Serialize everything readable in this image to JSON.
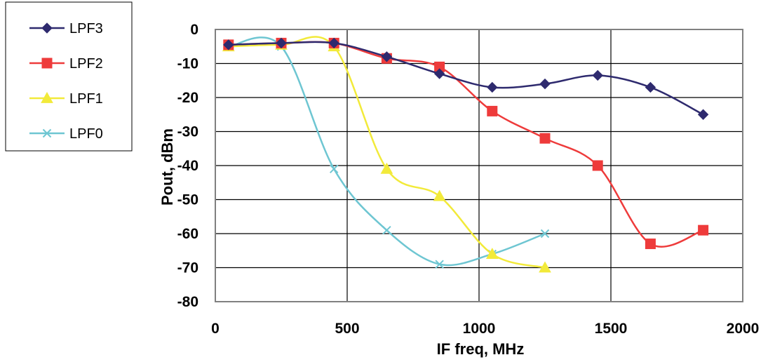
{
  "chart_data": {
    "type": "line",
    "title": "",
    "xlabel": "IF freq, MHz",
    "ylabel": "Pout, dBm",
    "xlim": [
      0,
      2000
    ],
    "ylim": [
      -80,
      0
    ],
    "x_ticks": [
      "0",
      "500",
      "1000",
      "1500",
      "2000"
    ],
    "y_ticks": [
      "0",
      "-10",
      "-20",
      "-30",
      "-40",
      "-50",
      "-60",
      "-70",
      "-80"
    ],
    "grid": true,
    "smooth": true,
    "legend_position": "left",
    "series": [
      {
        "name": "LPF3",
        "color": "#2E2A6E",
        "marker": "diamond",
        "x": [
          50,
          250,
          450,
          650,
          850,
          1050,
          1250,
          1450,
          1650,
          1850
        ],
        "y": [
          -4.5,
          -4,
          -4,
          -8,
          -13,
          -17,
          -16,
          -13.5,
          -17,
          -25
        ]
      },
      {
        "name": "LPF2",
        "color": "#EE3B3B",
        "marker": "square",
        "x": [
          50,
          250,
          450,
          650,
          850,
          1050,
          1250,
          1450,
          1650,
          1850
        ],
        "y": [
          -4.5,
          -4,
          -4,
          -8.5,
          -11,
          -24,
          -32,
          -40,
          -63,
          -59
        ]
      },
      {
        "name": "LPF1",
        "color": "#F2EA3A",
        "marker": "triangle",
        "x": [
          50,
          250,
          450,
          650,
          850,
          1050,
          1250
        ],
        "y": [
          -5,
          -4.5,
          -5,
          -41,
          -49,
          -66,
          -70
        ]
      },
      {
        "name": "LPF0",
        "color": "#6EC6D2",
        "marker": "x",
        "x": [
          50,
          250,
          450,
          650,
          850,
          1050,
          1250
        ],
        "y": [
          -5,
          -5,
          -41,
          -59,
          -69,
          -66,
          -60
        ]
      }
    ]
  }
}
